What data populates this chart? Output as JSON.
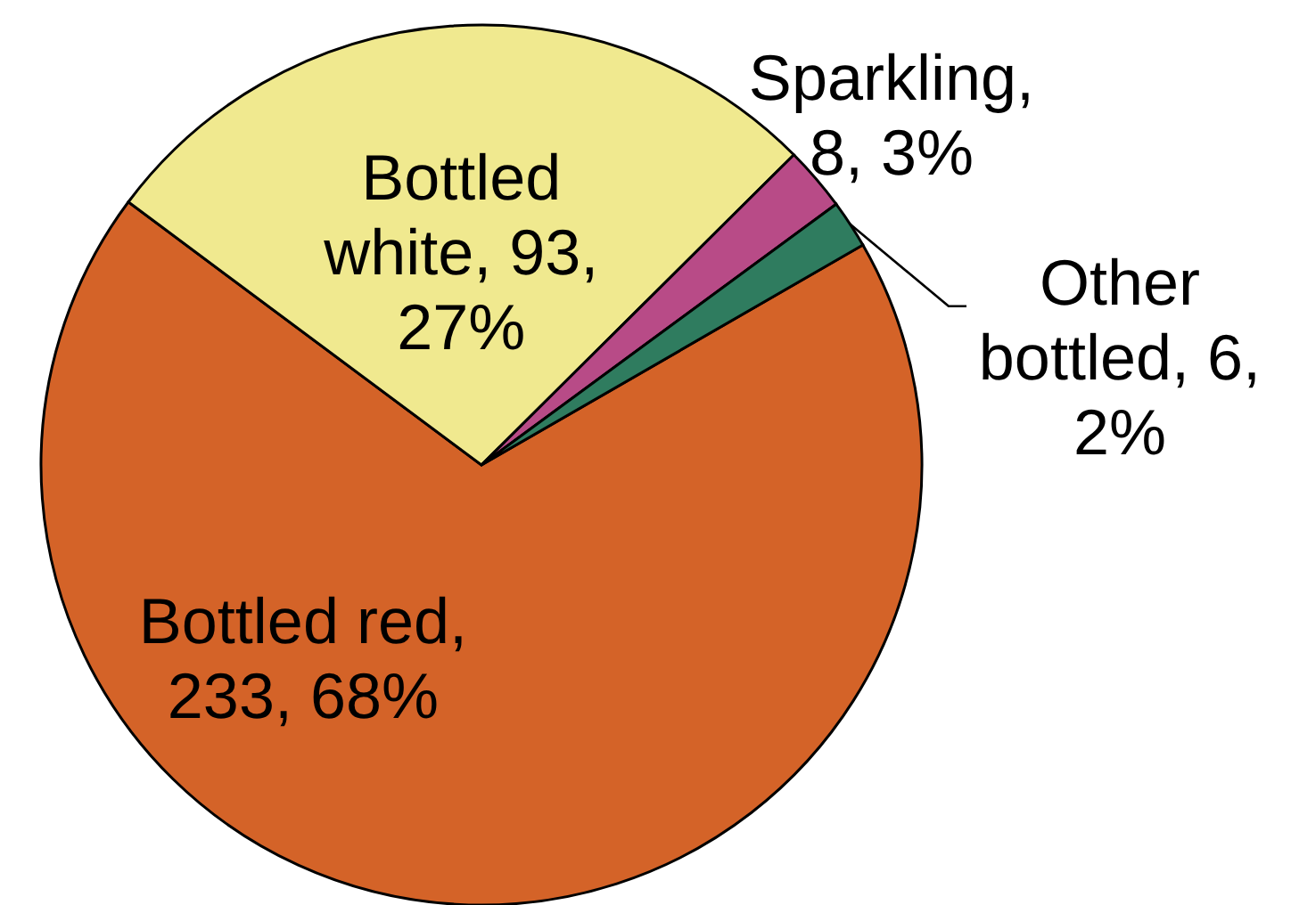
{
  "chart_data": {
    "type": "pie",
    "categories": [
      "Bottled red",
      "Bottled white",
      "Sparkling",
      "Other bottled"
    ],
    "values": [
      233,
      93,
      8,
      6
    ],
    "colors": [
      "#d46328",
      "#f0e98f",
      "#b84b87",
      "#2f7c5f"
    ],
    "value_labels": [
      ", 233, 68%",
      ", 93, 27%",
      ", 8, 3%",
      ", 6, 2%"
    ]
  }
}
